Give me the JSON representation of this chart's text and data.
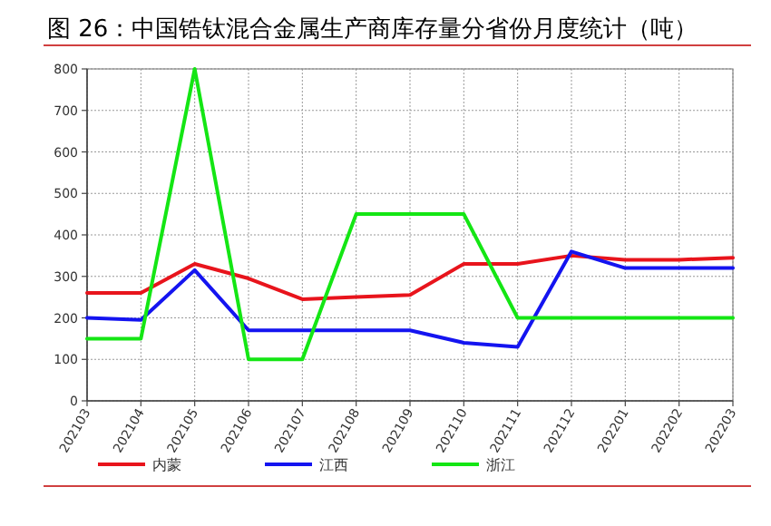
{
  "chart_data": {
    "type": "line",
    "title": "图 26：中国锆钛混合金属生产商库存量分省份月度统计（吨）",
    "categories": [
      "202103",
      "202104",
      "202105",
      "202106",
      "202107",
      "202108",
      "202109",
      "202110",
      "202111",
      "202112",
      "202201",
      "202202",
      "202203"
    ],
    "series": [
      {
        "name": "内蒙",
        "color": "#e8141c",
        "values": [
          260,
          260,
          330,
          295,
          245,
          250,
          255,
          330,
          330,
          350,
          340,
          340,
          345
        ]
      },
      {
        "name": "江西",
        "color": "#1414f0",
        "values": [
          200,
          195,
          315,
          170,
          170,
          170,
          170,
          140,
          130,
          360,
          320,
          320,
          320
        ]
      },
      {
        "name": "浙江",
        "color": "#14e614",
        "values": [
          150,
          150,
          800,
          100,
          100,
          450,
          450,
          450,
          200,
          200,
          200,
          200,
          200
        ]
      }
    ],
    "ylim": [
      0,
      800
    ],
    "yticks": [
      0,
      100,
      200,
      300,
      400,
      500,
      600,
      700,
      800
    ],
    "grid": true,
    "legend": "bottom",
    "marker": "none",
    "line_style": "solid"
  }
}
